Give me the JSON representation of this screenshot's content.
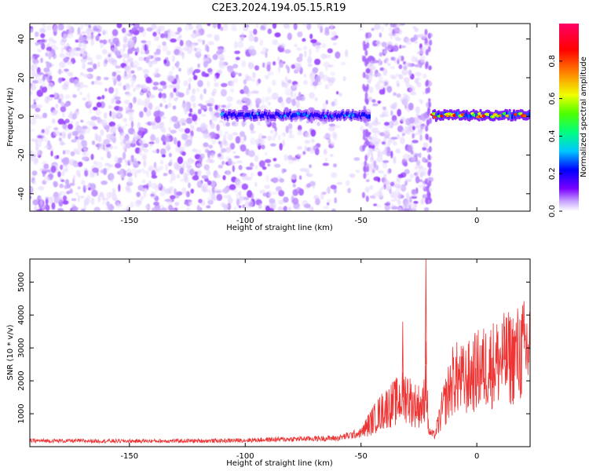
{
  "title": "C2E3.2024.194.05.15.R19",
  "chart_data": [
    {
      "type": "heatmap",
      "xlabel": "Height of straight line (km)",
      "ylabel": "Frequency (Hz)",
      "xlim": [
        -193,
        23
      ],
      "ylim": [
        -49,
        48
      ],
      "xticks": [
        -150,
        -100,
        -50,
        0
      ],
      "yticks": [
        -40,
        -20,
        0,
        20,
        40
      ],
      "grid": false,
      "colorbar": {
        "label": "Normalized spectral amplitude",
        "range": [
          0,
          1
        ],
        "ticks": [
          "0.0",
          "0.2",
          "0.4",
          "0.6",
          "0.8"
        ],
        "colormap": [
          "#ffffff",
          "#c9a9ff",
          "#7a00ff",
          "#0000ff",
          "#00c8ff",
          "#00ff80",
          "#4cff00",
          "#f0ff00",
          "#ff8000",
          "#ff0000",
          "#ff0066"
        ]
      },
      "features": {
        "noise_region_km": [
          -193,
          -20
        ],
        "gap_region_km": [
          -60,
          -48
        ],
        "signal_band_hz": [
          -3,
          4
        ],
        "signal_band_km": [
          -110,
          23
        ],
        "strongest_km": [
          -20,
          23
        ]
      }
    },
    {
      "type": "line",
      "xlabel": "Height of straight line (km)",
      "ylabel": "SNR (10 * v/v)",
      "xlim": [
        -193,
        23
      ],
      "ylim": [
        0,
        5700
      ],
      "xticks": [
        -150,
        -100,
        -50,
        0
      ],
      "yticks": [
        1000,
        2000,
        3000,
        4000,
        5000
      ],
      "grid": false,
      "series": [
        {
          "color": "#ee3333",
          "x": [
            -193,
            -150,
            -110,
            -80,
            -60,
            -50,
            -45,
            -40,
            -35,
            -32,
            -30,
            -28,
            -25,
            -23,
            -22,
            -21,
            -20,
            -18,
            -15,
            -12,
            -10,
            -5,
            0,
            5,
            10,
            15,
            20,
            23
          ],
          "y": [
            180,
            170,
            180,
            230,
            260,
            420,
            800,
            1150,
            1350,
            1500,
            1600,
            1300,
            1250,
            1200,
            2500,
            600,
            400,
            350,
            1100,
            1700,
            2100,
            2000,
            2300,
            2450,
            2600,
            2700,
            2900,
            3050
          ]
        }
      ],
      "peaks": [
        {
          "x": -32,
          "y": 3800
        },
        {
          "x": -22,
          "y": 5700
        },
        {
          "x": 12,
          "y": 3650
        }
      ]
    }
  ]
}
